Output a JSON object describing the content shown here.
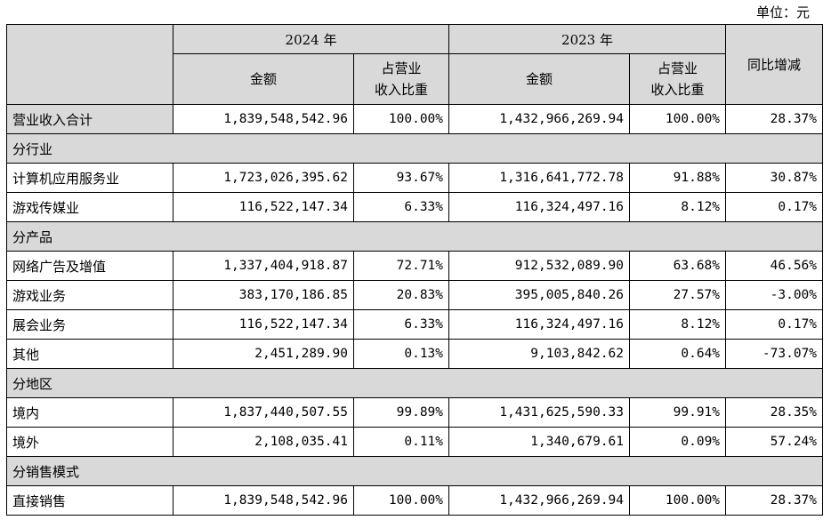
{
  "unit_label": "单位：元",
  "header": {
    "year_2024": "2024 年",
    "year_2023": "2023 年",
    "amount": "金额",
    "ratio_line1": "占营业",
    "ratio_line2": "收入比重",
    "yoy": "同比增减"
  },
  "rows": [
    {
      "type": "data",
      "shaded": true,
      "label": "营业收入合计",
      "amt2024": "1,839,548,542.96",
      "pct2024": "100.00%",
      "amt2023": "1,432,966,269.94",
      "pct2023": "100.00%",
      "yoy": "28.37%"
    },
    {
      "type": "section",
      "label": "分行业"
    },
    {
      "type": "data",
      "label": "计算机应用服务业",
      "amt2024": "1,723,026,395.62",
      "pct2024": "93.67%",
      "amt2023": "1,316,641,772.78",
      "pct2023": "91.88%",
      "yoy": "30.87%"
    },
    {
      "type": "data",
      "label": "游戏传媒业",
      "amt2024": "116,522,147.34",
      "pct2024": "6.33%",
      "amt2023": "116,324,497.16",
      "pct2023": "8.12%",
      "yoy": "0.17%"
    },
    {
      "type": "section",
      "label": "分产品"
    },
    {
      "type": "data",
      "label": "网络广告及增值",
      "amt2024": "1,337,404,918.87",
      "pct2024": "72.71%",
      "amt2023": "912,532,089.90",
      "pct2023": "63.68%",
      "yoy": "46.56%"
    },
    {
      "type": "data",
      "label": "游戏业务",
      "amt2024": "383,170,186.85",
      "pct2024": "20.83%",
      "amt2023": "395,005,840.26",
      "pct2023": "27.57%",
      "yoy": "-3.00%"
    },
    {
      "type": "data",
      "label": "展会业务",
      "amt2024": "116,522,147.34",
      "pct2024": "6.33%",
      "amt2023": "116,324,497.16",
      "pct2023": "8.12%",
      "yoy": "0.17%"
    },
    {
      "type": "data",
      "label": "其他",
      "amt2024": "2,451,289.90",
      "pct2024": "0.13%",
      "amt2023": "9,103,842.62",
      "pct2023": "0.64%",
      "yoy": "-73.07%"
    },
    {
      "type": "section",
      "label": "分地区"
    },
    {
      "type": "data",
      "label": "境内",
      "amt2024": "1,837,440,507.55",
      "pct2024": "99.89%",
      "amt2023": "1,431,625,590.33",
      "pct2023": "99.91%",
      "yoy": "28.35%"
    },
    {
      "type": "data",
      "label": "境外",
      "amt2024": "2,108,035.41",
      "pct2024": "0.11%",
      "amt2023": "1,340,679.61",
      "pct2023": "0.09%",
      "yoy": "57.24%"
    },
    {
      "type": "section",
      "label": "分销售模式"
    },
    {
      "type": "data",
      "label": "直接销售",
      "amt2024": "1,839,548,542.96",
      "pct2024": "100.00%",
      "amt2023": "1,432,966,269.94",
      "pct2023": "100.00%",
      "yoy": "28.37%"
    }
  ]
}
